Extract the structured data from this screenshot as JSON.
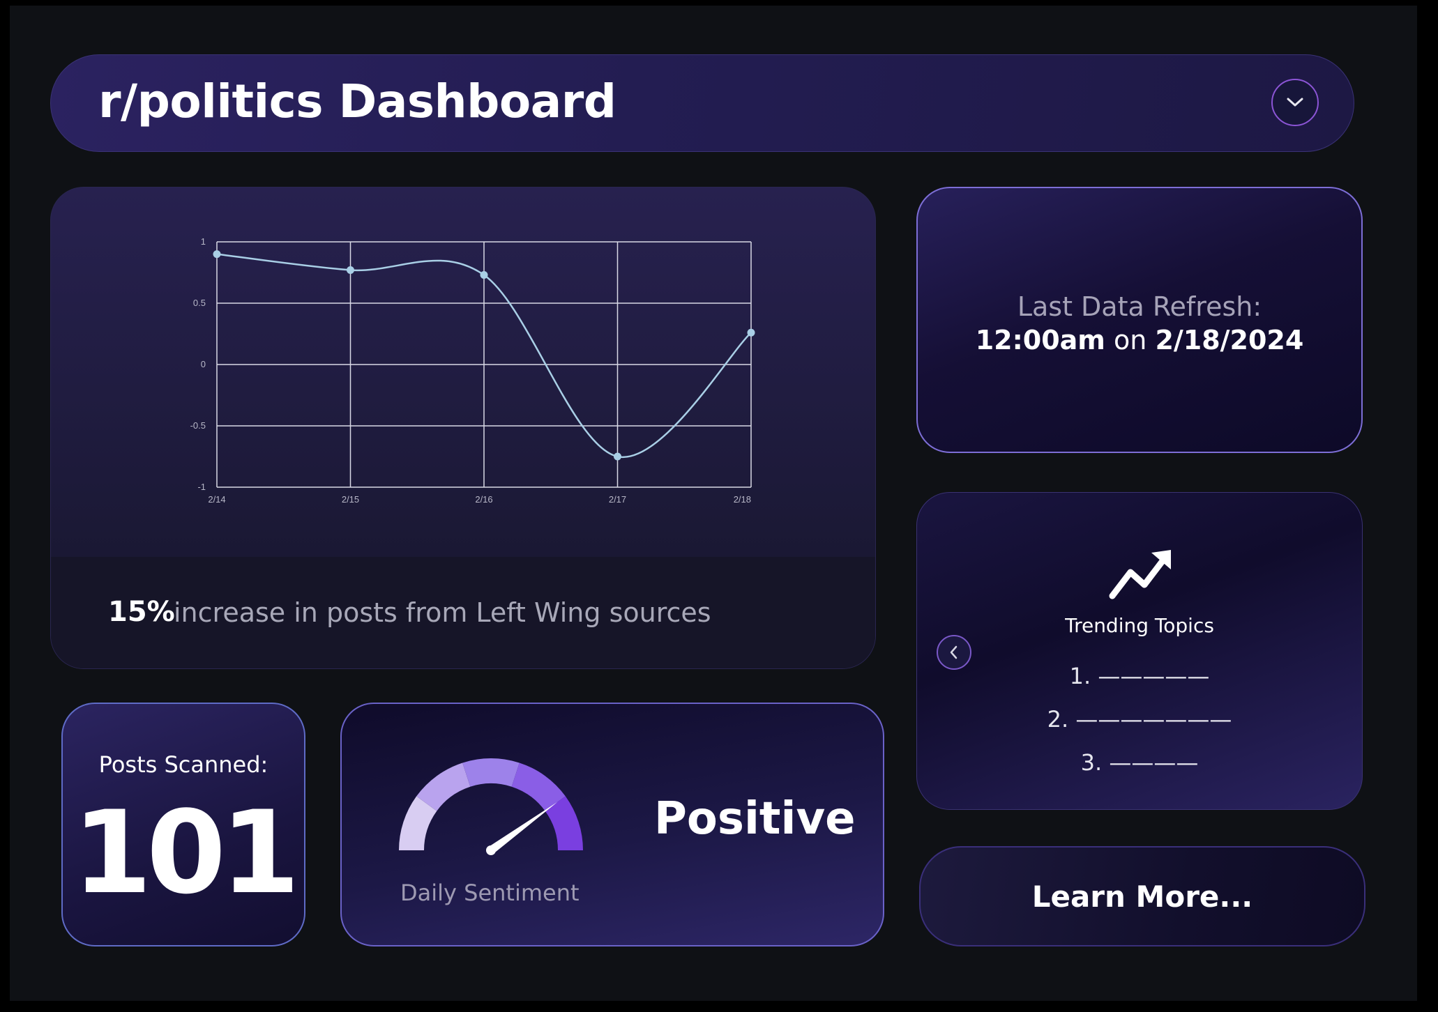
{
  "header": {
    "title": "r/politics Dashboard"
  },
  "chart_data": {
    "type": "line",
    "x": [
      "2/14",
      "2/15",
      "2/16",
      "2/17",
      "2/18"
    ],
    "values": [
      0.9,
      0.77,
      0.73,
      -0.75,
      0.26
    ],
    "ylim": [
      -1,
      1
    ],
    "yticks": [
      "1",
      "0.5",
      "0",
      "-0.5",
      "-1"
    ],
    "grid": true,
    "line_color": "#a9cfe6",
    "grid_color": "#d9d9e6"
  },
  "chart_footer": {
    "percent": "15%",
    "text": "increase in posts from Left Wing sources"
  },
  "refresh": {
    "label": "Last Data Refresh:",
    "time": "12:00am",
    "on": "on",
    "date": "2/18/2024"
  },
  "trending": {
    "title": "Trending Topics",
    "items": [
      "1. —————",
      "2. ———————",
      "3. ————"
    ],
    "icon": "trending-up-icon"
  },
  "learn_more": {
    "label": "Learn More..."
  },
  "posts": {
    "label": "Posts Scanned:",
    "value": "101"
  },
  "sentiment": {
    "label": "Daily Sentiment",
    "value": "Positive",
    "gauge_level": 0.8,
    "gauge_colors": [
      "#d8cdf2",
      "#b9a3ee",
      "#9d82ea",
      "#8a5ee6",
      "#7a3fe0"
    ]
  }
}
